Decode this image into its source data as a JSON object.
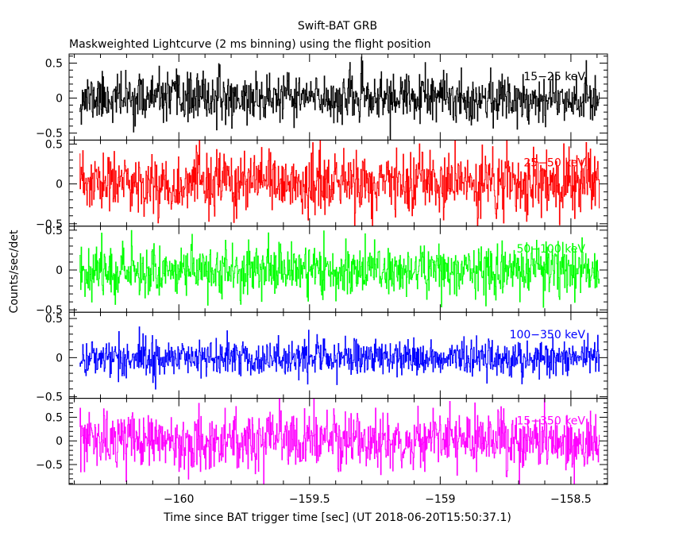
{
  "header": {
    "title": "Swift-BAT GRB",
    "subtitle": "Maskweighted Lightcurve (2 ms binning) using the flight position"
  },
  "axes": {
    "xlabel": "Time since BAT trigger time [sec] (UT 2018-06-20T15:50:37.1)",
    "ylabel": "Counts/sec/det"
  },
  "chart_data": {
    "type": "line",
    "x_range": [
      -160.42,
      -158.36
    ],
    "x_ticks": [
      -160,
      -159.5,
      -159,
      -158.5
    ],
    "x_tick_labels": [
      "−160",
      "−159.5",
      "−159",
      "−158.5"
    ],
    "data_x_range": [
      -160.38,
      -158.39
    ],
    "bin_seconds": 0.002,
    "xlabel": "Time since BAT trigger time [sec] (UT 2018-06-20T15:50:37.1)",
    "ylabel": "Counts/sec/det",
    "title": "Swift-BAT GRB",
    "subtitle": "Maskweighted Lightcurve (2 ms binning) using the flight position",
    "series": [
      {
        "name": "15−25 keV",
        "color": "#000000",
        "ylim": [
          -0.6,
          0.63
        ],
        "yticks": [
          -0.5,
          0,
          0.5
        ],
        "ytick_labels": [
          "−0.5",
          "0",
          "0.5"
        ],
        "noise_sd": 0.17,
        "seed": 11
      },
      {
        "name": "25−50 keV",
        "color": "#ff0000",
        "ylim": [
          -0.53,
          0.55
        ],
        "yticks": [
          -0.5,
          0,
          0.5
        ],
        "ytick_labels": [
          "−0.5",
          "0",
          "0.5"
        ],
        "noise_sd": 0.19,
        "seed": 23
      },
      {
        "name": "50−100 keV",
        "color": "#00ff00",
        "ylim": [
          -0.53,
          0.55
        ],
        "yticks": [
          -0.5,
          0,
          0.5
        ],
        "ytick_labels": [
          "−0.5",
          "0",
          "0.5"
        ],
        "noise_sd": 0.16,
        "seed": 37
      },
      {
        "name": "100−350 keV",
        "color": "#0000ff",
        "ylim": [
          -0.52,
          0.58
        ],
        "yticks": [
          -0.5,
          0,
          0.5
        ],
        "ytick_labels": [
          "−0.5",
          "0",
          "0.5"
        ],
        "noise_sd": 0.12,
        "seed": 41
      },
      {
        "name": "15−350 keV",
        "color": "#ff00ff",
        "ylim": [
          -0.92,
          0.9
        ],
        "yticks": [
          -0.5,
          0,
          0.5
        ],
        "ytick_labels": [
          "−0.5",
          "0",
          "0.5"
        ],
        "noise_sd": 0.3,
        "seed": 53
      }
    ]
  }
}
